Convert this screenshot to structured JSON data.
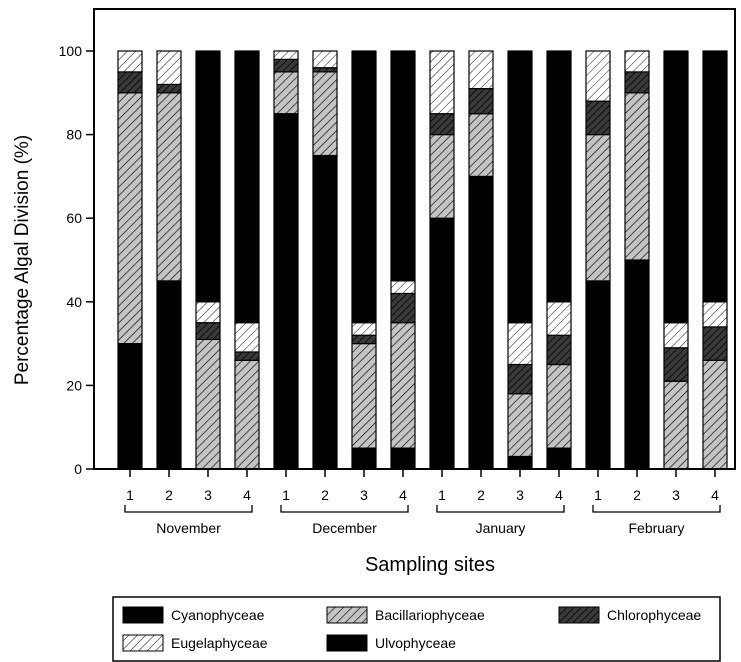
{
  "chart_data": {
    "type": "bar",
    "stacked": true,
    "title": "",
    "xlabel": "Sampling sites",
    "ylabel": "Percentage Algal Division (%)",
    "ylim": [
      0,
      100
    ],
    "yticks": [
      "0",
      "20",
      "40",
      "60",
      "80",
      "100"
    ],
    "grid": false,
    "legend_position": "bottom",
    "groups": [
      {
        "name": "November",
        "sites": [
          "1",
          "2",
          "3",
          "4"
        ]
      },
      {
        "name": "December",
        "sites": [
          "1",
          "2",
          "3",
          "4"
        ]
      },
      {
        "name": "January",
        "sites": [
          "1",
          "2",
          "3",
          "4"
        ]
      },
      {
        "name": "February",
        "sites": [
          "1",
          "2",
          "3",
          "4"
        ]
      }
    ],
    "series": [
      {
        "name": "Cyanophyceae",
        "pattern": "solid-black",
        "values": [
          30,
          45,
          0,
          0,
          85,
          75,
          5,
          5,
          60,
          70,
          3,
          5,
          45,
          50,
          0,
          0
        ]
      },
      {
        "name": "Bacillariophyceae",
        "pattern": "dense-hatch-gray",
        "values": [
          60,
          45,
          31,
          26,
          10,
          20,
          25,
          30,
          20,
          15,
          15,
          20,
          35,
          40,
          21,
          26
        ]
      },
      {
        "name": "Chlorophyceae",
        "pattern": "dark-hatch",
        "values": [
          5,
          2,
          4,
          2,
          3,
          1,
          2,
          7,
          5,
          6,
          7,
          7,
          8,
          5,
          8,
          8
        ]
      },
      {
        "name": "Eugelaphyceae",
        "pattern": "light-hatch",
        "values": [
          5,
          8,
          5,
          7,
          2,
          4,
          3,
          3,
          15,
          9,
          10,
          8,
          12,
          5,
          6,
          6
        ]
      },
      {
        "name": "Ulvophyceae",
        "pattern": "solid-black",
        "values": [
          0,
          0,
          60,
          65,
          0,
          0,
          65,
          55,
          0,
          0,
          65,
          60,
          0,
          0,
          65,
          60
        ]
      }
    ],
    "colors": {
      "solid": "#000000",
      "gray": "#c4c4c4",
      "dark": "#3a3a3a",
      "white": "#ffffff"
    }
  }
}
